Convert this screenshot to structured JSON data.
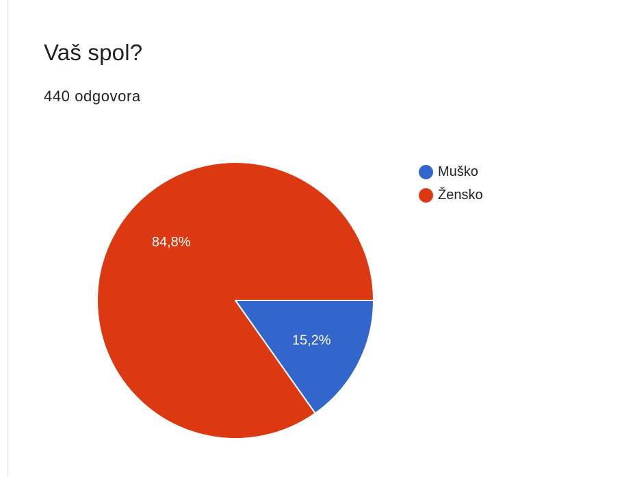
{
  "question": {
    "title": "Vaš spol?",
    "response_count": "440 odgovora"
  },
  "chart_data": {
    "type": "pie",
    "title": "Vaš spol?",
    "subtitle": "440 odgovora",
    "categories": [
      "Muško",
      "Žensko"
    ],
    "values": [
      15.2,
      84.8
    ],
    "labels": [
      "15,2%",
      "84,8%"
    ],
    "colors": [
      "#3366cc",
      "#dc3912"
    ],
    "legend_position": "right"
  }
}
